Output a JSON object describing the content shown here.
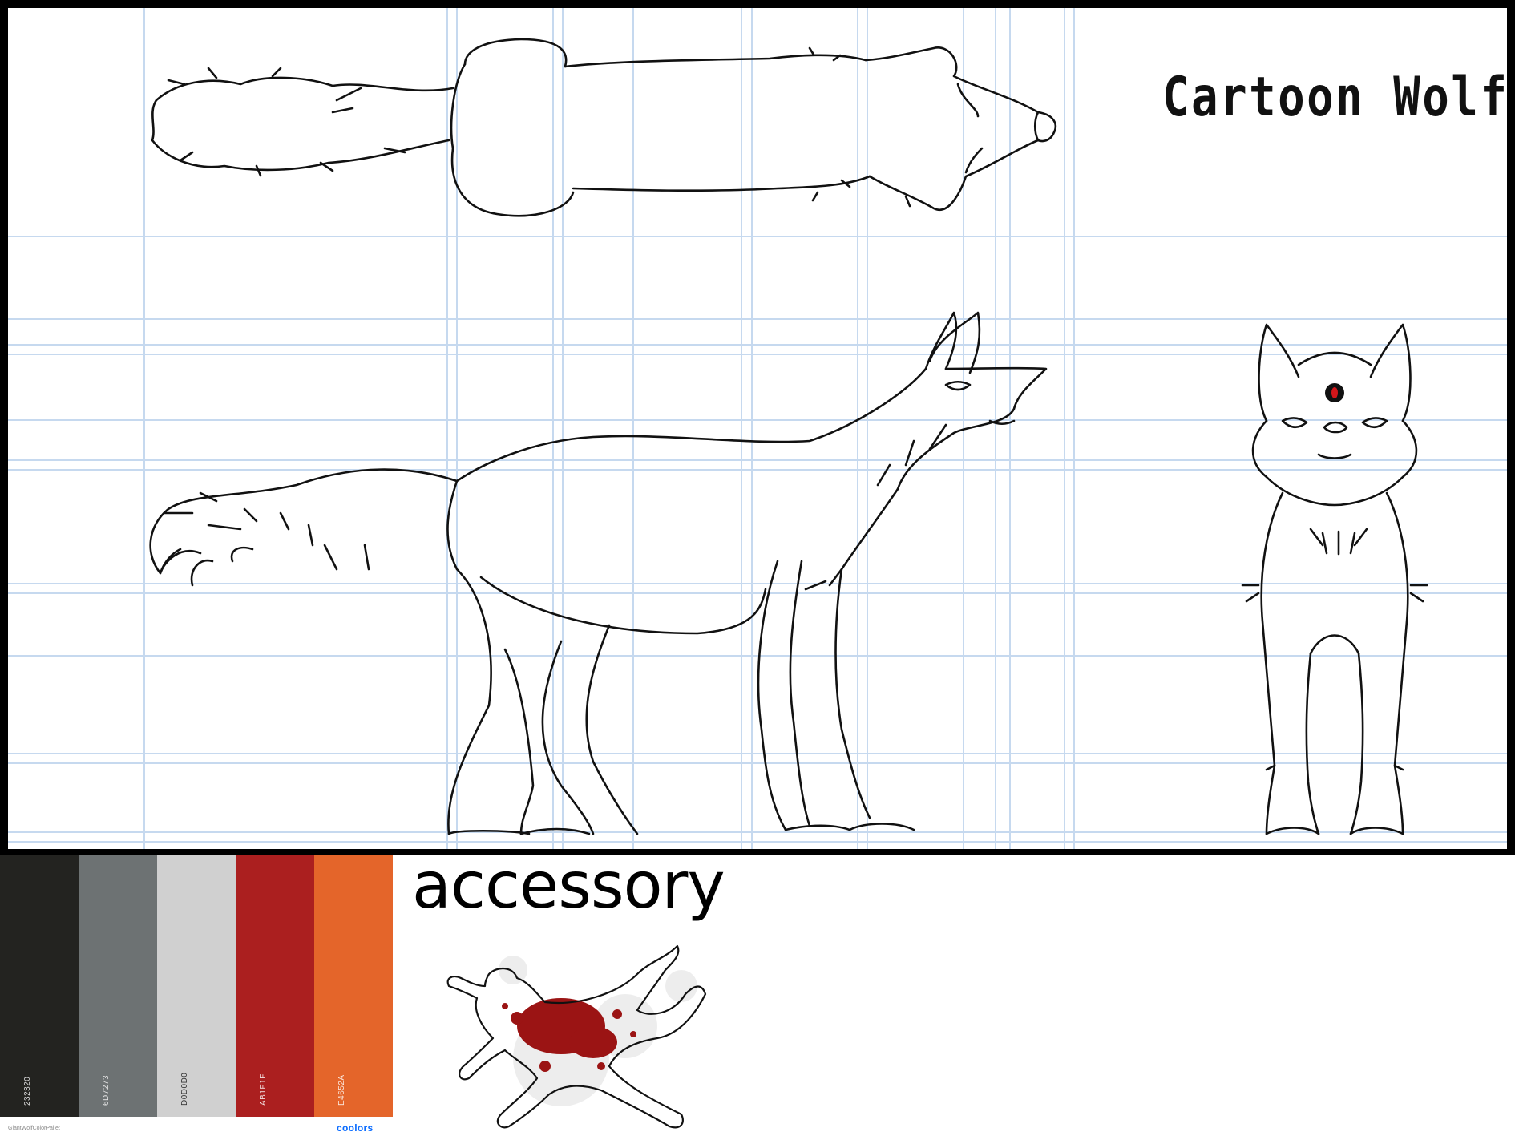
{
  "sheet": {
    "title": "Cartoon Wolf",
    "views": [
      "top-view",
      "side-view",
      "front-view"
    ]
  },
  "colors": {
    "frame": "#000000",
    "grid_line": "#c6d9ef",
    "line_art": "#111111",
    "eye_accent": "#d4161a"
  },
  "palette": {
    "swatches": [
      {
        "hex": "#232320",
        "code": "232320",
        "text_color": "#d8d8d8"
      },
      {
        "hex": "#6D7273",
        "code": "6D7273",
        "text_color": "#e6e6e6"
      },
      {
        "hex": "#D0D0D0",
        "code": "D0D0D0",
        "text_color": "#333333"
      },
      {
        "hex": "#AB1F1F",
        "code": "AB1F1F",
        "text_color": "#f1dede"
      },
      {
        "hex": "#E4652A",
        "code": "E4652A",
        "text_color": "#fbe7dc"
      }
    ],
    "name": "GiantWolfColorPallet",
    "brand": "coolors"
  },
  "accessory": {
    "label": "accessory",
    "icon": "chalk-outline-body",
    "blood_color": "#9b1414"
  }
}
